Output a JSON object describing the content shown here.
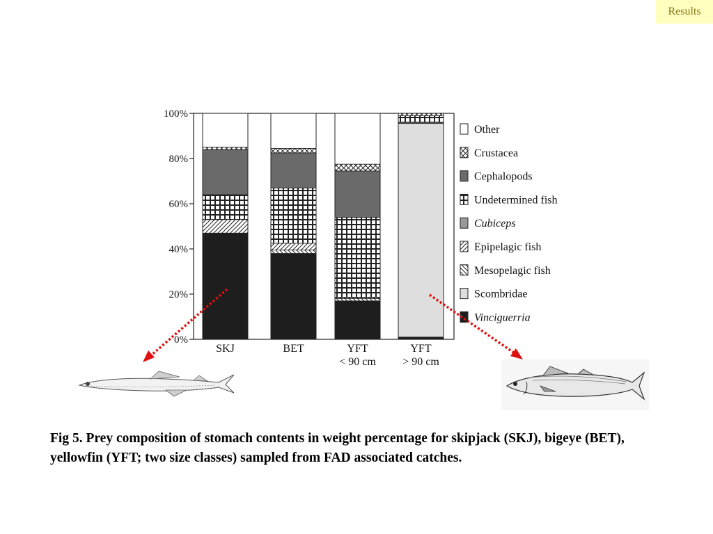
{
  "header": {
    "badge": "Results"
  },
  "caption": "Fig 5. Prey composition of stomach contents in weight percentage for skipjack (SKJ), bigeye (BET), yellowfin (YFT; two size classes) sampled from FAD associated catches.",
  "chart_data": {
    "type": "bar",
    "stacked": true,
    "title": "",
    "xlabel": "",
    "ylabel": "",
    "ylim": [
      0,
      100
    ],
    "yticks": [
      "0%",
      "20%",
      "40%",
      "60%",
      "80%",
      "100%"
    ],
    "legend_position": "right",
    "grid": false,
    "categories": [
      [
        "SKJ"
      ],
      [
        "BET"
      ],
      [
        "YFT",
        "< 90 cm"
      ],
      [
        "YFT",
        "> 90 cm"
      ]
    ],
    "series": [
      {
        "name": "Vinciguerria",
        "italic": true,
        "values": [
          47,
          38,
          17,
          1
        ]
      },
      {
        "name": "Scombridae",
        "values": [
          0,
          0,
          0,
          94.5
        ]
      },
      {
        "name": "Mesopelagic fish",
        "values": [
          0,
          1.5,
          1,
          0
        ]
      },
      {
        "name": "Epipelagic fish",
        "values": [
          6,
          3,
          0.5,
          0
        ]
      },
      {
        "name": "Cubiceps",
        "italic": true,
        "values": [
          0,
          0,
          0,
          0.5
        ]
      },
      {
        "name": "Undetermined fish",
        "values": [
          11,
          24.5,
          35.5,
          3
        ]
      },
      {
        "name": "Cephalopods",
        "values": [
          20,
          15.5,
          20.5,
          0
        ]
      },
      {
        "name": "Crustacea",
        "values": [
          1,
          2,
          3,
          1
        ]
      },
      {
        "name": "Other",
        "values": [
          15,
          15.5,
          22.5,
          0
        ]
      }
    ],
    "legend_order": [
      "Other",
      "Crustacea",
      "Cephalopods",
      "Undetermined fish",
      "Cubiceps",
      "Epipelagic fish",
      "Mesopelagic fish",
      "Scombridae",
      "Vinciguerria"
    ]
  },
  "colors": {
    "badge_bg": "#ffffc0",
    "badge_text": "#8a7a1a",
    "arrow": "#e01010",
    "dark": "#1e1e1e",
    "cephalopods": "#6a6a6a",
    "cubiceps": "#9a9a9a",
    "scombridae": "#dedede"
  }
}
